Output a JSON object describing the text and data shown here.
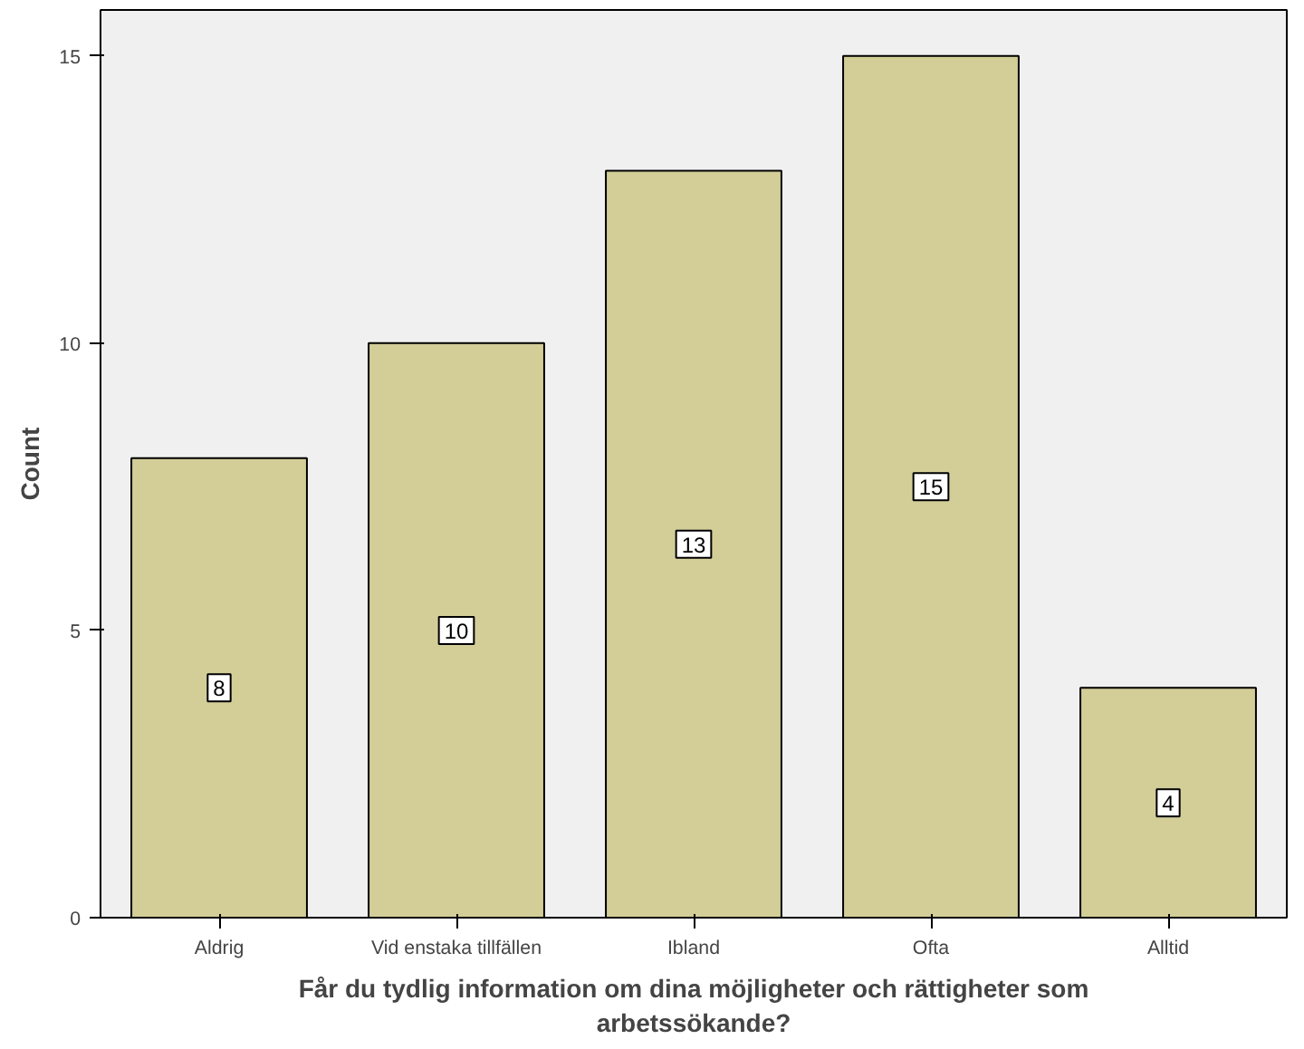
{
  "chart_data": {
    "type": "bar",
    "categories": [
      "Aldrig",
      "Vid enstaka tillfällen",
      "Ibland",
      "Ofta",
      "Alltid"
    ],
    "values": [
      8,
      10,
      13,
      15,
      4
    ],
    "color": "#d3ce98",
    "ylabel": "Count",
    "xlabel": "Får du tydlig information om dina möjligheter och rättigheter som arbetssökande?",
    "ylim": [
      0,
      15.8
    ],
    "yticks": [
      0,
      5,
      10,
      15
    ],
    "grid": false,
    "data_labels": true
  }
}
